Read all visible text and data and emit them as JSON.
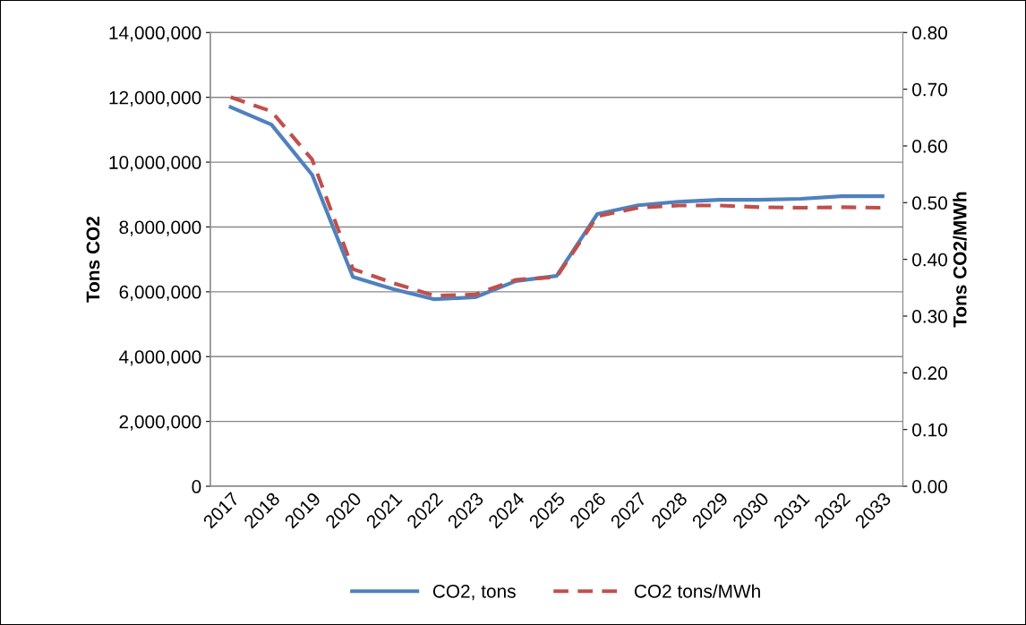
{
  "chart_data": {
    "type": "line",
    "categories": [
      "2017",
      "2018",
      "2019",
      "2020",
      "2021",
      "2022",
      "2023",
      "2024",
      "2025",
      "2026",
      "2027",
      "2028",
      "2029",
      "2030",
      "2031",
      "2032",
      "2033"
    ],
    "series": [
      {
        "name": "CO2, tons",
        "color": "#4f81bd",
        "line_style": "solid",
        "values": [
          11700000,
          11160000,
          9610000,
          6460000,
          6080000,
          5770000,
          5830000,
          6330000,
          6490000,
          8400000,
          8670000,
          8780000,
          8840000,
          8840000,
          8870000,
          8950000,
          8950000
        ]
      },
      {
        "name": "CO2 tons/MWh",
        "color": "#c0504d",
        "line_style": "dashed",
        "axis": "y2",
        "values": [
          0.686,
          0.661,
          0.576,
          0.383,
          0.358,
          0.336,
          0.338,
          0.364,
          0.369,
          0.476,
          0.491,
          0.495,
          0.495,
          0.492,
          0.491,
          0.492,
          0.491
        ]
      }
    ],
    "ylabel": "Tons CO2",
    "y2label": "Tons CO2/MWh",
    "ylim": [
      0,
      14000000
    ],
    "yticks": [
      {
        "value": 0,
        "label": "0"
      },
      {
        "value": 2000000,
        "label": "2,000,000"
      },
      {
        "value": 4000000,
        "label": "4,000,000"
      },
      {
        "value": 6000000,
        "label": "6,000,000"
      },
      {
        "value": 8000000,
        "label": "8,000,000"
      },
      {
        "value": 10000000,
        "label": "10,000,000"
      },
      {
        "value": 12000000,
        "label": "12,000,000"
      },
      {
        "value": 14000000,
        "label": "14,000,000"
      }
    ],
    "y2lim": [
      0,
      0.8
    ],
    "y2ticks": [
      {
        "value": 0,
        "label": "0.00"
      },
      {
        "value": 0.1,
        "label": "0.10"
      },
      {
        "value": 0.2,
        "label": "0.20"
      },
      {
        "value": 0.3,
        "label": "0.30"
      },
      {
        "value": 0.4,
        "label": "0.40"
      },
      {
        "value": 0.5,
        "label": "0.50"
      },
      {
        "value": 0.6,
        "label": "0.60"
      },
      {
        "value": 0.7,
        "label": "0.70"
      },
      {
        "value": 0.8,
        "label": "0.80"
      }
    ],
    "grid": "y",
    "legend": "bottom",
    "marker": "none"
  }
}
